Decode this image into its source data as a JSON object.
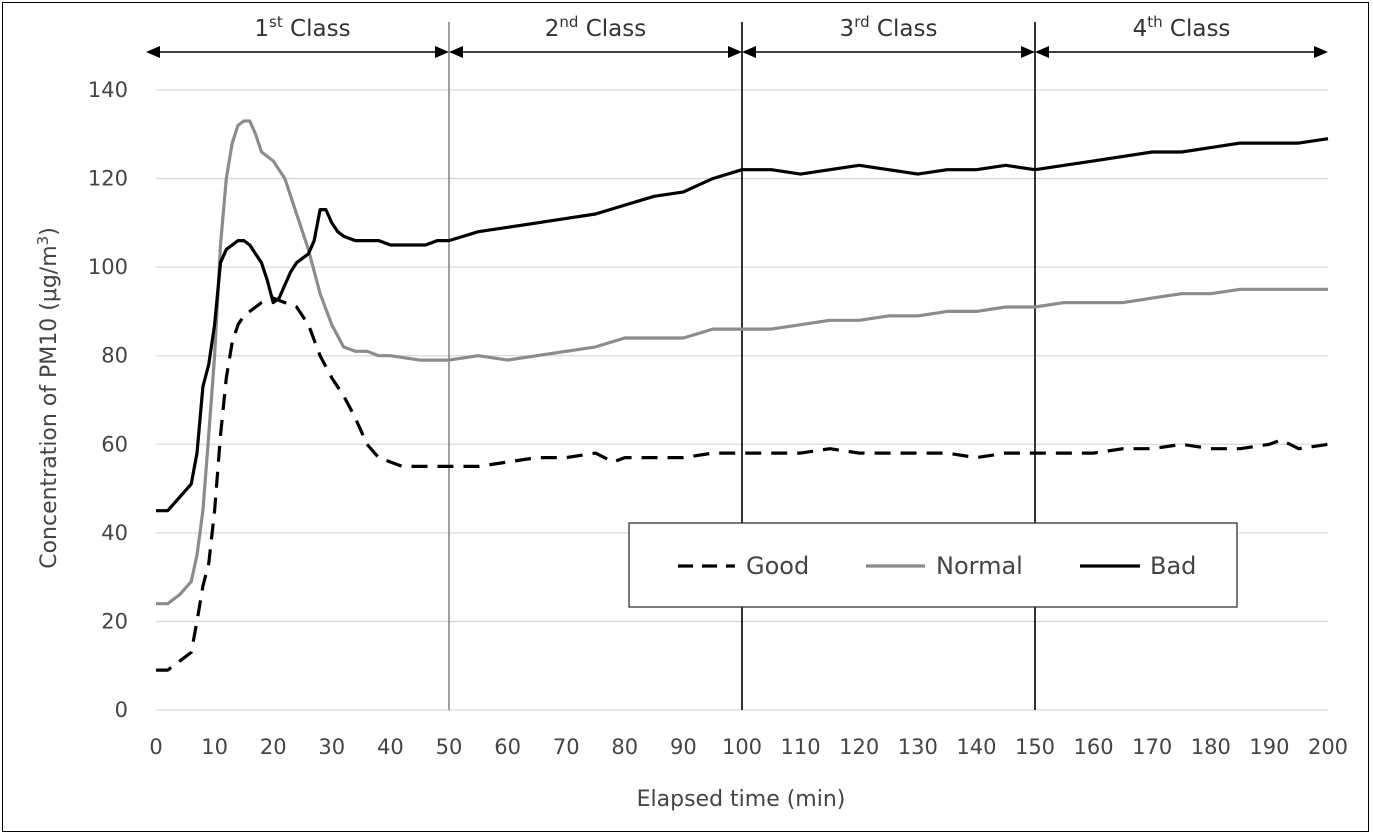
{
  "chart_data": {
    "type": "line",
    "title": "",
    "xlabel": "Elapsed time (min)",
    "ylabel_prefix": "Concentration of PM10 (μg/m",
    "ylabel_sup": "3",
    "ylabel_suffix": ")",
    "xlim": [
      0,
      200
    ],
    "ylim": [
      0,
      140
    ],
    "x_ticks": [
      0,
      10,
      20,
      30,
      40,
      50,
      60,
      70,
      80,
      90,
      100,
      110,
      120,
      130,
      140,
      150,
      160,
      170,
      180,
      190,
      200
    ],
    "y_ticks": [
      0,
      20,
      40,
      60,
      80,
      100,
      120,
      140
    ],
    "grid": "horizontal",
    "legend_position": "center-right",
    "periods": [
      {
        "num": "1",
        "sup": "st",
        "suffix": " Class",
        "start": 0,
        "end": 50
      },
      {
        "num": "2",
        "sup": "nd",
        "suffix": " Class",
        "start": 50,
        "end": 100
      },
      {
        "num": "3",
        "sup": "rd",
        "suffix": " Class",
        "start": 100,
        "end": 150
      },
      {
        "num": "4",
        "sup": "th",
        "suffix": " Class",
        "start": 150,
        "end": 200
      }
    ],
    "dividers": [
      {
        "x": 50,
        "color": "#888888"
      },
      {
        "x": 100,
        "color": "#000000"
      },
      {
        "x": 150,
        "color": "#000000"
      }
    ],
    "series": [
      {
        "name": "Good",
        "color": "#000000",
        "dash": "dashed",
        "x": [
          0,
          2,
          4,
          6,
          7,
          8,
          9,
          10,
          11,
          12,
          13,
          14,
          15,
          16,
          18,
          20,
          22,
          24,
          26,
          28,
          30,
          32,
          34,
          36,
          38,
          40,
          42,
          45,
          48,
          50,
          55,
          60,
          65,
          70,
          75,
          78,
          80,
          85,
          90,
          95,
          100,
          105,
          110,
          115,
          120,
          125,
          130,
          135,
          140,
          145,
          150,
          155,
          160,
          165,
          170,
          175,
          180,
          185,
          190,
          192,
          195,
          200
        ],
        "y": [
          9,
          9,
          11,
          13,
          20,
          28,
          33,
          45,
          62,
          75,
          83,
          87,
          89,
          90,
          92,
          93,
          92,
          91,
          87,
          80,
          75,
          71,
          66,
          60,
          57,
          56,
          55,
          55,
          55,
          55,
          55,
          56,
          57,
          57,
          58,
          56,
          57,
          57,
          57,
          58,
          58,
          58,
          58,
          59,
          58,
          58,
          58,
          58,
          57,
          58,
          58,
          58,
          58,
          59,
          59,
          60,
          59,
          59,
          60,
          61,
          59,
          60
        ]
      },
      {
        "name": "Normal",
        "color": "#8c8c8c",
        "dash": "solid",
        "x": [
          0,
          2,
          4,
          6,
          7,
          8,
          9,
          10,
          11,
          12,
          13,
          14,
          15,
          16,
          17,
          18,
          20,
          22,
          24,
          26,
          28,
          30,
          32,
          34,
          36,
          38,
          40,
          45,
          50,
          55,
          60,
          65,
          70,
          75,
          80,
          85,
          90,
          95,
          100,
          105,
          110,
          115,
          120,
          125,
          130,
          135,
          140,
          145,
          150,
          155,
          160,
          165,
          170,
          175,
          180,
          185,
          190,
          195,
          200
        ],
        "y": [
          24,
          24,
          26,
          29,
          35,
          45,
          62,
          80,
          105,
          120,
          128,
          132,
          133,
          133,
          130,
          126,
          124,
          120,
          112,
          104,
          94,
          87,
          82,
          81,
          81,
          80,
          80,
          79,
          79,
          80,
          79,
          80,
          81,
          82,
          84,
          84,
          84,
          86,
          86,
          86,
          87,
          88,
          88,
          89,
          89,
          90,
          90,
          91,
          91,
          92,
          92,
          92,
          93,
          94,
          94,
          95,
          95,
          95,
          95
        ]
      },
      {
        "name": "Bad",
        "color": "#000000",
        "dash": "solid",
        "x": [
          0,
          2,
          4,
          6,
          7,
          8,
          9,
          10,
          11,
          12,
          13,
          14,
          15,
          16,
          17,
          18,
          19,
          20,
          21,
          22,
          23,
          24,
          25,
          26,
          27,
          28,
          29,
          30,
          31,
          32,
          34,
          36,
          38,
          40,
          42,
          44,
          46,
          48,
          50,
          55,
          60,
          65,
          70,
          75,
          80,
          85,
          90,
          95,
          100,
          105,
          110,
          115,
          120,
          125,
          130,
          135,
          140,
          145,
          150,
          155,
          160,
          165,
          170,
          175,
          180,
          185,
          190,
          195,
          200
        ],
        "y": [
          45,
          45,
          48,
          51,
          58,
          73,
          78,
          87,
          101,
          104,
          105,
          106,
          106,
          105,
          103,
          101,
          97,
          92,
          93,
          96,
          99,
          101,
          102,
          103,
          106,
          113,
          113,
          110,
          108,
          107,
          106,
          106,
          106,
          105,
          105,
          105,
          105,
          106,
          106,
          108,
          109,
          110,
          111,
          112,
          114,
          116,
          117,
          120,
          122,
          122,
          121,
          122,
          123,
          122,
          121,
          122,
          122,
          123,
          122,
          123,
          124,
          125,
          126,
          126,
          127,
          128,
          128,
          128,
          129
        ]
      }
    ]
  }
}
